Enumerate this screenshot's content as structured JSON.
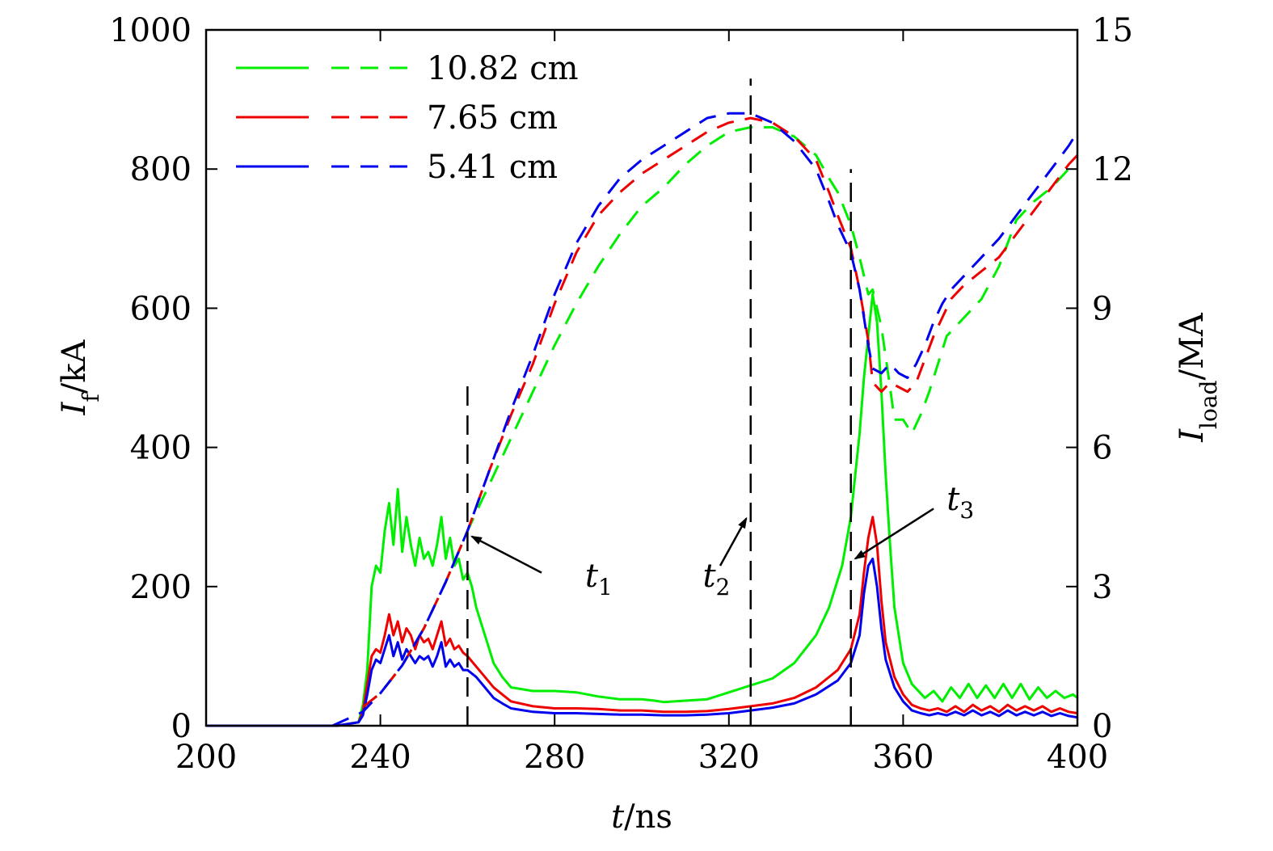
{
  "chart_data": {
    "type": "line",
    "xlabel": {
      "var": "t",
      "unit": "/ns"
    },
    "ylabel_left": {
      "var": "I",
      "sub": "f",
      "unit": "/kA"
    },
    "ylabel_right": {
      "var": "I",
      "sub": "load",
      "unit": "/MA"
    },
    "xlim": [
      200,
      400
    ],
    "ylim_left": [
      0,
      1000
    ],
    "ylim_right": [
      0,
      15
    ],
    "xticks": [
      200,
      240,
      280,
      320,
      360,
      400
    ],
    "yticks_left": [
      0,
      200,
      400,
      600,
      800,
      1000
    ],
    "yticks_right": [
      0,
      3,
      6,
      9,
      12,
      15
    ],
    "legend": {
      "location": "top-left",
      "entries": [
        {
          "label": "10.82 cm",
          "color": "#00ee00"
        },
        {
          "label": "7.65 cm",
          "color": "#ee0000"
        },
        {
          "label": "5.41 cm",
          "color": "#0000ee"
        }
      ]
    },
    "series": [
      {
        "name": "10.82 cm If",
        "axis": "left",
        "style": "solid",
        "color": "#00ee00",
        "x": [
          200,
          230,
          235,
          236,
          237,
          238,
          239,
          240,
          241,
          242,
          243,
          244,
          245,
          246,
          247,
          248,
          249,
          250,
          251,
          252,
          253,
          254,
          255,
          256,
          257,
          258,
          259,
          260,
          261,
          262,
          263,
          264,
          265,
          266,
          268,
          270,
          275,
          280,
          285,
          290,
          295,
          300,
          303,
          305,
          310,
          315,
          320,
          325,
          330,
          335,
          340,
          343,
          346,
          348,
          350,
          351,
          352,
          353,
          354,
          355,
          356,
          357,
          358,
          360,
          362,
          365,
          367,
          369,
          371,
          373,
          375,
          377,
          379,
          381,
          383,
          385,
          387,
          389,
          391,
          393,
          395,
          397,
          399,
          400
        ],
        "y": [
          0,
          0,
          5,
          30,
          80,
          200,
          230,
          220,
          280,
          320,
          260,
          340,
          250,
          300,
          260,
          230,
          270,
          240,
          250,
          230,
          260,
          300,
          240,
          270,
          230,
          240,
          210,
          220,
          200,
          170,
          150,
          130,
          110,
          90,
          70,
          55,
          50,
          50,
          48,
          42,
          38,
          38,
          36,
          34,
          36,
          38,
          48,
          58,
          68,
          90,
          130,
          170,
          230,
          300,
          420,
          500,
          560,
          620,
          580,
          480,
          360,
          260,
          170,
          90,
          60,
          40,
          50,
          35,
          55,
          40,
          60,
          40,
          58,
          40,
          60,
          40,
          60,
          38,
          55,
          40,
          50,
          40,
          45,
          40
        ]
      },
      {
        "name": "7.65 cm If",
        "axis": "left",
        "style": "solid",
        "color": "#ee0000",
        "x": [
          200,
          230,
          235,
          236,
          237,
          238,
          239,
          240,
          241,
          242,
          243,
          244,
          245,
          246,
          247,
          248,
          249,
          250,
          251,
          252,
          253,
          254,
          255,
          256,
          257,
          258,
          259,
          260,
          262,
          264,
          266,
          268,
          270,
          275,
          280,
          285,
          290,
          295,
          300,
          305,
          310,
          315,
          320,
          325,
          330,
          335,
          340,
          345,
          348,
          350,
          351,
          352,
          353,
          354,
          355,
          356,
          358,
          360,
          362,
          364,
          366,
          368,
          370,
          372,
          374,
          376,
          378,
          380,
          382,
          384,
          386,
          388,
          390,
          392,
          394,
          396,
          398,
          400
        ],
        "y": [
          0,
          0,
          5,
          20,
          60,
          100,
          110,
          105,
          130,
          160,
          130,
          150,
          120,
          140,
          130,
          110,
          130,
          120,
          125,
          110,
          130,
          150,
          115,
          125,
          110,
          115,
          105,
          100,
          85,
          70,
          55,
          45,
          35,
          28,
          25,
          25,
          24,
          22,
          22,
          20,
          20,
          21,
          24,
          28,
          32,
          40,
          55,
          80,
          110,
          160,
          220,
          270,
          300,
          260,
          180,
          120,
          70,
          45,
          30,
          25,
          22,
          25,
          20,
          28,
          20,
          30,
          22,
          28,
          20,
          30,
          22,
          28,
          22,
          28,
          20,
          25,
          20,
          18
        ]
      },
      {
        "name": "5.41 cm If",
        "axis": "left",
        "style": "solid",
        "color": "#0000ee",
        "x": [
          200,
          230,
          235,
          236,
          237,
          238,
          239,
          240,
          241,
          242,
          243,
          244,
          245,
          246,
          247,
          248,
          249,
          250,
          251,
          252,
          253,
          254,
          255,
          256,
          257,
          258,
          259,
          260,
          262,
          264,
          266,
          268,
          270,
          275,
          280,
          285,
          290,
          295,
          300,
          305,
          310,
          315,
          320,
          325,
          330,
          335,
          340,
          345,
          348,
          350,
          351,
          352,
          353,
          354,
          355,
          356,
          358,
          360,
          362,
          364,
          366,
          368,
          370,
          372,
          374,
          376,
          378,
          380,
          382,
          384,
          386,
          388,
          390,
          392,
          394,
          396,
          398,
          400
        ],
        "y": [
          0,
          0,
          5,
          15,
          45,
          80,
          95,
          90,
          110,
          130,
          100,
          120,
          95,
          110,
          100,
          90,
          100,
          95,
          100,
          85,
          100,
          120,
          85,
          95,
          85,
          90,
          80,
          80,
          70,
          55,
          40,
          32,
          25,
          20,
          18,
          18,
          17,
          16,
          16,
          15,
          15,
          16,
          18,
          22,
          26,
          32,
          45,
          65,
          90,
          130,
          190,
          230,
          240,
          200,
          140,
          95,
          55,
          35,
          22,
          18,
          15,
          18,
          15,
          20,
          15,
          22,
          15,
          20,
          14,
          22,
          15,
          20,
          15,
          20,
          14,
          18,
          14,
          12
        ]
      },
      {
        "name": "10.82 cm Iload",
        "axis": "right",
        "style": "dashed",
        "color": "#00ee00",
        "x": [
          236,
          240,
          245,
          250,
          255,
          260,
          265,
          270,
          275,
          280,
          285,
          290,
          295,
          300,
          305,
          310,
          315,
          320,
          325,
          330,
          335,
          340,
          343,
          345,
          348,
          350,
          352,
          353,
          355,
          357,
          358,
          360,
          362,
          364,
          366,
          368,
          370,
          374,
          378,
          382,
          386,
          390,
          394,
          398,
          400
        ],
        "y": [
          0.4,
          0.7,
          1.3,
          2.1,
          3.1,
          4.2,
          5.2,
          6.2,
          7.2,
          8.2,
          9.1,
          9.9,
          10.6,
          11.2,
          11.6,
          12.1,
          12.5,
          12.8,
          12.9,
          12.9,
          12.7,
          12.3,
          11.8,
          11.5,
          10.8,
          10.1,
          9.3,
          9.4,
          8.6,
          7.3,
          6.6,
          6.6,
          6.3,
          6.7,
          7.2,
          7.8,
          8.4,
          8.8,
          9.2,
          9.9,
          10.9,
          11.3,
          11.6,
          12,
          12.1
        ]
      },
      {
        "name": "7.65 cm Iload",
        "axis": "right",
        "style": "dashed",
        "color": "#ee0000",
        "x": [
          236,
          240,
          245,
          250,
          255,
          260,
          265,
          270,
          275,
          280,
          285,
          290,
          295,
          300,
          305,
          310,
          315,
          320,
          325,
          330,
          335,
          340,
          343,
          345,
          348,
          350,
          352,
          353,
          355,
          357,
          359,
          361,
          363,
          365,
          367,
          369,
          371,
          374,
          378,
          382,
          386,
          390,
          394,
          398,
          400
        ],
        "y": [
          0.4,
          0.7,
          1.3,
          2.1,
          3.1,
          4.2,
          5.5,
          6.7,
          7.8,
          9.1,
          10.2,
          11,
          11.5,
          11.9,
          12.2,
          12.5,
          12.8,
          13,
          13.1,
          13,
          12.7,
          12.2,
          11.5,
          11,
          10.3,
          9.4,
          8.3,
          7.4,
          7.2,
          7.4,
          7.3,
          7.2,
          7.4,
          7.9,
          8.4,
          8.8,
          9.2,
          9.5,
          9.8,
          10.1,
          10.6,
          11.1,
          11.6,
          12.1,
          12.3
        ]
      },
      {
        "name": "5.41 cm Iload",
        "axis": "right",
        "style": "dashed",
        "color": "#0000ee",
        "x": [
          229,
          236,
          240,
          245,
          250,
          255,
          260,
          265,
          270,
          275,
          280,
          285,
          290,
          295,
          300,
          305,
          310,
          315,
          320,
          325,
          330,
          335,
          340,
          343,
          345,
          348,
          350,
          352,
          353,
          355,
          357,
          359,
          361,
          363,
          365,
          367,
          369,
          371,
          374,
          378,
          382,
          386,
          390,
          394,
          398,
          400
        ],
        "y": [
          0,
          0.3,
          0.7,
          1.3,
          2.1,
          3.1,
          4.2,
          5.5,
          6.8,
          8,
          9.3,
          10.4,
          11.2,
          11.8,
          12.2,
          12.5,
          12.8,
          13.1,
          13.2,
          13.2,
          13,
          12.6,
          12,
          11.3,
          10.8,
          10.2,
          9.4,
          8.2,
          7.7,
          7.6,
          7.8,
          7.6,
          7.5,
          7.8,
          8.2,
          8.7,
          9.1,
          9.4,
          9.7,
          10.1,
          10.5,
          11,
          11.5,
          12,
          12.5,
          12.8
        ]
      }
    ],
    "vertical_markers": [
      {
        "x": 260,
        "y_top": 490
      },
      {
        "x": 325,
        "y_top": 930
      },
      {
        "x": 348,
        "y_top": 800
      }
    ],
    "annotations": [
      {
        "var": "t",
        "sub": "1",
        "text_x": 287,
        "text_y": 200,
        "arrow_from_x": 277,
        "arrow_from_y": 220,
        "arrow_to_x": 261,
        "arrow_to_y": 272
      },
      {
        "var": "t",
        "sub": "2",
        "text_x": 314,
        "text_y": 200,
        "arrow_from_x": 318,
        "arrow_from_y": 230,
        "arrow_to_x": 324,
        "arrow_to_y": 298
      },
      {
        "var": "t",
        "sub": "3",
        "text_x": 370,
        "text_y": 310,
        "arrow_from_x": 367,
        "arrow_from_y": 312,
        "arrow_to_x": 349,
        "arrow_to_y": 240
      }
    ]
  }
}
